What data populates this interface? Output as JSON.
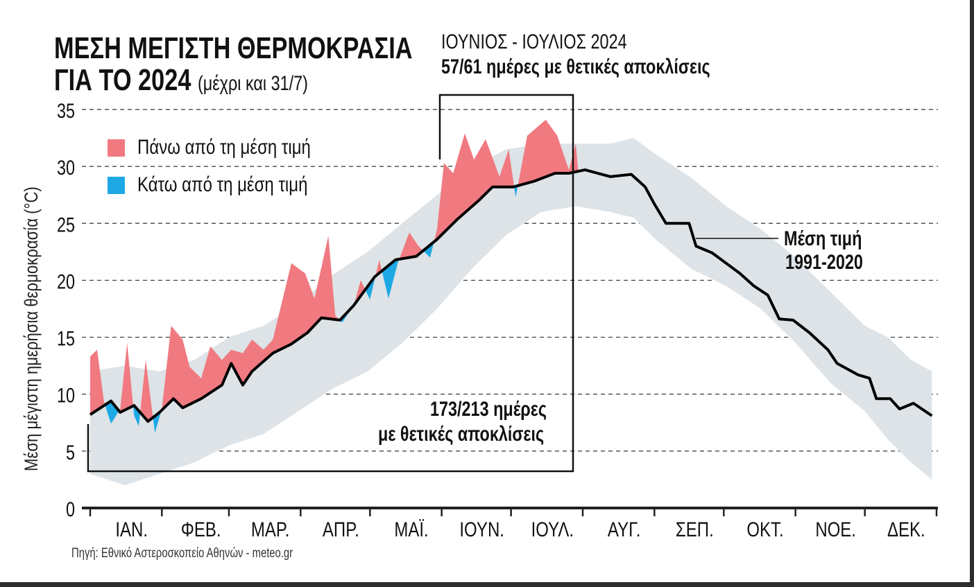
{
  "chart_data": {
    "type": "area",
    "title_line1": "ΜΕΣΗ ΜΕΓΙΣΤΗ ΘΕΡΜΟΚΡΑΣΙΑ",
    "title_line2": "ΓΙΑ ΤΟ 2024",
    "subtitle": "(μέχρι και 31/7)",
    "ylabel": "Μέση μέγιστη ημερήσια θερμοκρασία (°C)",
    "ylim": [
      0,
      35
    ],
    "yticks": [
      "0",
      "5",
      "10",
      "15",
      "20",
      "25",
      "30",
      "35"
    ],
    "months": [
      "ΙΑΝ.",
      "ΦΕΒ.",
      "ΜΑΡ.",
      "ΑΠΡ.",
      "ΜΑΪ.",
      "ΙΟΥΝ.",
      "ΙΟΥΛ.",
      "ΑΥΓ.",
      "ΣΕΠ.",
      "ΟΚΤ.",
      "ΝΟΕ.",
      "ΔΕΚ."
    ],
    "month_starts_day": [
      0,
      31,
      60,
      91,
      121,
      152,
      182,
      213,
      244,
      274,
      305,
      335,
      366
    ],
    "legend": [
      {
        "label": "Πάνω από τη μέση τιμή",
        "color": "#f07a80"
      },
      {
        "label": "Κάτω από τη μέση τιμή",
        "color": "#1ea9e5"
      }
    ],
    "band_color": "#dde3e7",
    "mean_series": {
      "name": "Μέση τιμή 1991-2020",
      "label_line1": "Μέση τιμή",
      "label_line2": "1991-2020",
      "day": [
        0,
        9,
        13,
        19,
        25,
        30,
        36,
        40,
        48,
        57,
        61,
        66,
        70,
        79,
        87,
        94,
        100,
        108,
        114,
        123,
        132,
        141,
        150,
        159,
        168,
        174,
        183,
        192,
        201,
        207,
        214,
        225,
        234,
        240,
        244,
        249,
        259,
        262,
        269,
        275,
        281,
        287,
        293,
        298,
        304,
        311,
        319,
        323,
        332,
        337,
        340,
        346,
        350,
        356,
        364
      ],
      "value": [
        8.2,
        9.4,
        8.4,
        9.0,
        7.6,
        8.4,
        9.6,
        8.8,
        9.6,
        10.8,
        12.7,
        10.8,
        12.0,
        13.6,
        14.4,
        15.4,
        16.7,
        16.5,
        17.8,
        20.3,
        21.8,
        22.1,
        23.6,
        25.4,
        27.0,
        28.2,
        28.2,
        28.7,
        29.4,
        29.4,
        29.7,
        29.1,
        29.3,
        28.2,
        26.7,
        25.0,
        25.0,
        23.0,
        22.4,
        21.5,
        20.6,
        19.5,
        18.7,
        16.6,
        16.5,
        15.4,
        13.9,
        12.7,
        11.7,
        11.4,
        9.6,
        9.6,
        8.7,
        9.2,
        8.1
      ]
    },
    "range_band": {
      "day": [
        0,
        15,
        30,
        45,
        60,
        75,
        90,
        105,
        120,
        135,
        150,
        165,
        180,
        195,
        210,
        225,
        235,
        245,
        260,
        275,
        290,
        305,
        320,
        335,
        345,
        355,
        364
      ],
      "upper": [
        12,
        12.5,
        12,
        13,
        15,
        16,
        18,
        20.5,
        22.5,
        25,
        27.5,
        30,
        31.5,
        32,
        32,
        32,
        32.5,
        31,
        29,
        26.5,
        24.5,
        22,
        19,
        16,
        15,
        13,
        12
      ],
      "lower": [
        3,
        2,
        3,
        4,
        5.5,
        6.5,
        8.5,
        10.5,
        12,
        14.5,
        17.5,
        21,
        24,
        26,
        26.5,
        26,
        25.5,
        23.5,
        21,
        19.5,
        17.5,
        14.5,
        11,
        8.5,
        6,
        4,
        2.5
      ]
    },
    "series_2024": {
      "name": "2024",
      "day": [
        0,
        3,
        6,
        9,
        13,
        16,
        19,
        21,
        24,
        28,
        31,
        35,
        40,
        43,
        48,
        52,
        57,
        61,
        66,
        70,
        75,
        79,
        87,
        93,
        97,
        103,
        106,
        109,
        114,
        117,
        121,
        125,
        129,
        133,
        138,
        142,
        147,
        150,
        153,
        157,
        162,
        166,
        171,
        177,
        181,
        184,
        189,
        197,
        202,
        207,
        210,
        211
      ],
      "value": [
        13.3,
        13.9,
        9.3,
        7.4,
        8.7,
        14.5,
        8.1,
        7.2,
        13.0,
        6.6,
        8.7,
        16.0,
        14.8,
        12.4,
        11.4,
        14.2,
        13.0,
        13.9,
        13.6,
        14.8,
        13.9,
        14.8,
        21.5,
        20.6,
        18.4,
        23.9,
        16.9,
        16.3,
        17.8,
        20.0,
        18.3,
        21.8,
        18.4,
        21.5,
        24.2,
        23.0,
        22.0,
        24.5,
        30.3,
        29.4,
        32.9,
        30.6,
        32.4,
        29.1,
        31.5,
        27.3,
        32.7,
        34.1,
        32.7,
        29.7,
        32.0,
        29.7
      ]
    },
    "annotations": {
      "summer_line1": "ΙΟΥΝΙΟΣ - ΙΟΥΛΙΟΣ 2024",
      "summer_line2": "57/61 ημέρες με θετικές αποκλίσεις",
      "ytd_line1": "173/213 ημέρες",
      "ytd_line2": "με θετικές αποκλίσεις"
    },
    "source": "Πηγή: Εθνικό Αστεροσκοπείο Αθηνών - meteo.gr"
  }
}
